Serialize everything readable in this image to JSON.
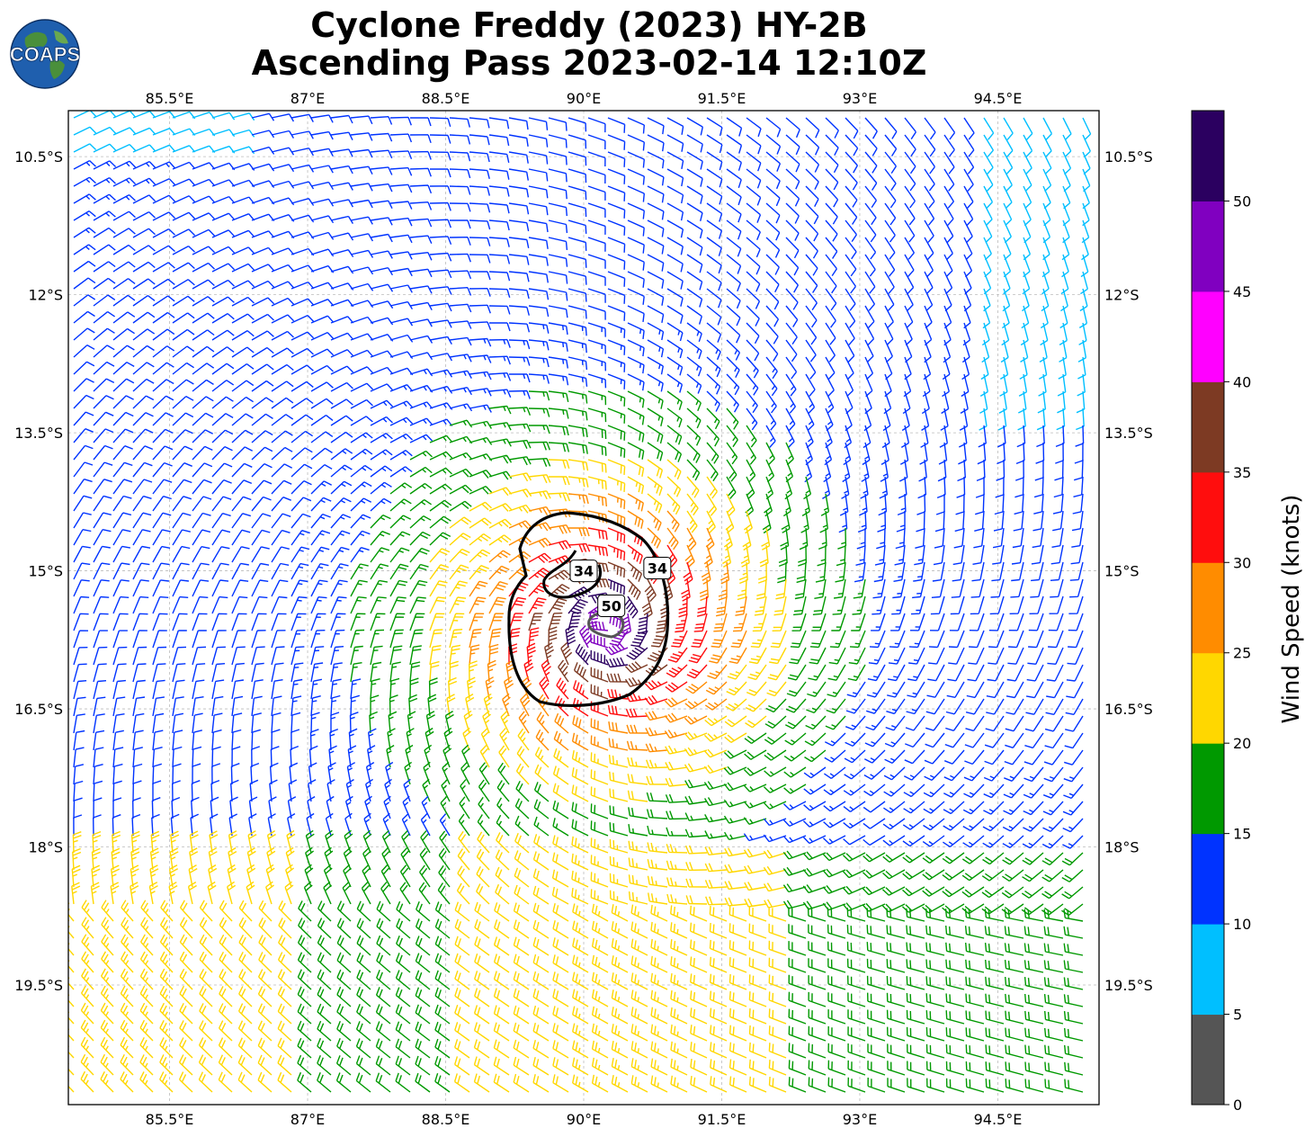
{
  "header": {
    "title_line1": "Cyclone Freddy (2023) HY-2B",
    "title_line2": "Ascending Pass 2023-02-14 12:10Z",
    "logo_text": "COAPS"
  },
  "map": {
    "lon_ticks": [
      85.5,
      87,
      88.5,
      90,
      91.5,
      93,
      94.5
    ],
    "lon_tick_labels": [
      "85.5°E",
      "87°E",
      "88.5°E",
      "90°E",
      "91.5°E",
      "93°E",
      "94.5°E"
    ],
    "lat_ticks": [
      -10.5,
      -12,
      -13.5,
      -15,
      -16.5,
      -18,
      -19.5
    ],
    "lat_tick_labels": [
      "10.5°S",
      "12°S",
      "13.5°S",
      "15°S",
      "16.5°S",
      "18°S",
      "19.5°S"
    ],
    "lon_range": [
      84.4,
      95.6
    ],
    "lat_range": [
      -20.8,
      -10.0
    ],
    "grid": true,
    "storm_center": {
      "lon": 90.25,
      "lat": -15.6
    },
    "contour_labels": [
      {
        "text": "34",
        "lon": 90.0,
        "lat": -15.0
      },
      {
        "text": "34",
        "lon": 90.8,
        "lat": -14.97
      },
      {
        "text": "50",
        "lon": 90.3,
        "lat": -15.38
      }
    ]
  },
  "colorbar": {
    "label": "Wind Speed (knots)",
    "tick_values": [
      0,
      5,
      10,
      15,
      20,
      25,
      30,
      35,
      40,
      45,
      50
    ],
    "tick_labels": [
      "0",
      "5",
      "10",
      "15",
      "20",
      "25",
      "30",
      "35",
      "40",
      "45",
      "50"
    ],
    "colors": [
      "#555555",
      "#00bfff",
      "#0033ff",
      "#009900",
      "#ffd700",
      "#ff8c00",
      "#ff0d0d",
      "#7d3a23",
      "#ff00ff",
      "#8000c0",
      "#2b0060"
    ]
  }
}
